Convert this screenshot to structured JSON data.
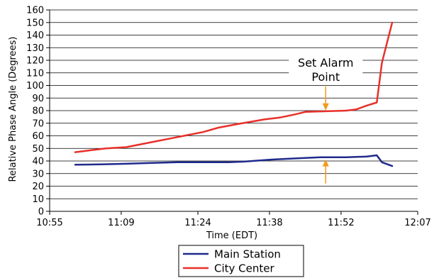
{
  "chart_data": {
    "type": "line",
    "title": "",
    "xlabel": "Time (EDT)",
    "ylabel": "Relative Phase Angle (Degrees)",
    "xlim": [
      "10:55",
      "12:07"
    ],
    "ylim": [
      0,
      160
    ],
    "x_tick_labels": [
      "10:55",
      "11:09",
      "11:24",
      "11:38",
      "11:52",
      "12:07"
    ],
    "y_tick_labels": [
      "0",
      "10",
      "20",
      "30",
      "40",
      "50",
      "60",
      "70",
      "80",
      "90",
      "100",
      "110",
      "120",
      "130",
      "140",
      "150",
      "160"
    ],
    "grid": "horizontal",
    "legend_position": "bottom-center",
    "series": [
      {
        "name": "Main Station",
        "color": "#1f2a8c",
        "points": [
          [
            "11:00",
            37
          ],
          [
            "11:05",
            37.3
          ],
          [
            "11:10",
            37.8
          ],
          [
            "11:15",
            38.5
          ],
          [
            "11:20",
            39
          ],
          [
            "11:25",
            39
          ],
          [
            "11:30",
            39
          ],
          [
            "11:33",
            39.5
          ],
          [
            "11:38",
            41
          ],
          [
            "11:43",
            42
          ],
          [
            "11:48",
            43
          ],
          [
            "11:53",
            43
          ],
          [
            "11:57",
            43.5
          ],
          [
            "11:59",
            44.5
          ],
          [
            "12:00",
            39
          ],
          [
            "12:02",
            36
          ]
        ]
      },
      {
        "name": "City Center",
        "color": "#e8302a",
        "points": [
          [
            "11:00",
            47
          ],
          [
            "11:03",
            48.5
          ],
          [
            "11:06",
            50
          ],
          [
            "11:10",
            51
          ],
          [
            "11:15",
            55
          ],
          [
            "11:20",
            59
          ],
          [
            "11:25",
            63
          ],
          [
            "11:28",
            66.5
          ],
          [
            "11:32",
            69.5
          ],
          [
            "11:37",
            73
          ],
          [
            "11:40",
            74.5
          ],
          [
            "11:43",
            77
          ],
          [
            "11:45",
            79
          ],
          [
            "11:49",
            79.5
          ],
          [
            "11:53",
            80
          ],
          [
            "11:55",
            81
          ],
          [
            "11:57",
            84
          ],
          [
            "11:59",
            86.5
          ],
          [
            "12:00",
            118
          ],
          [
            "12:02",
            150
          ]
        ]
      }
    ],
    "annotation": {
      "lines": [
        "Set Alarm",
        "Point"
      ],
      "at_time": "11:49",
      "arrow_down_tip": 79,
      "arrow_up_tip": 43,
      "color": "#f29a1f"
    }
  }
}
